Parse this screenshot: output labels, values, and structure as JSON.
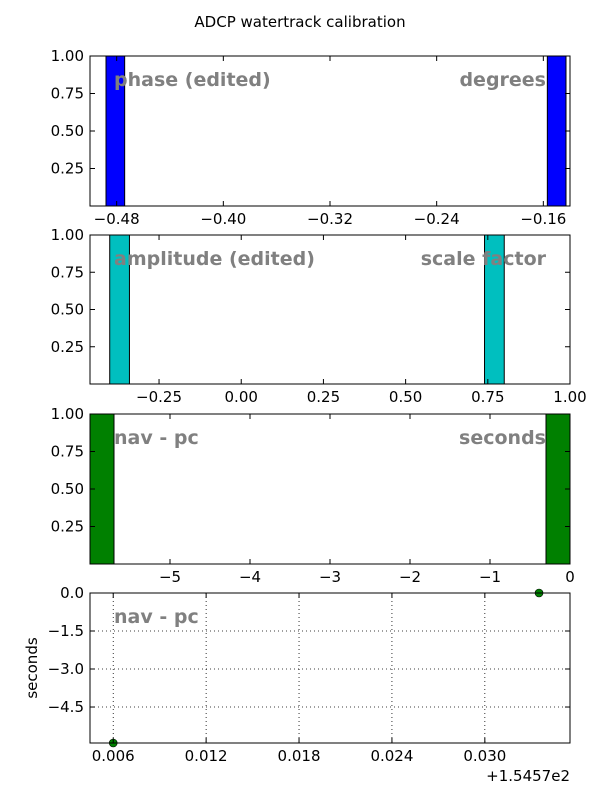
{
  "chart_data": [
    {
      "title": "ADCP watertrack calibration",
      "type": "bar",
      "panel": 1,
      "bars": [
        {
          "x0": -0.488,
          "x1": -0.474,
          "value": 1.0
        },
        {
          "x0": -0.157,
          "x1": -0.143,
          "value": 1.0
        }
      ],
      "bar_color": "#0000ff",
      "xlim": [
        -0.5,
        -0.14
      ],
      "ylim": [
        0,
        1.0
      ],
      "xticks": [
        -0.48,
        -0.4,
        -0.32,
        -0.24,
        -0.16
      ],
      "xtick_labels": [
        "−0.48",
        "−0.40",
        "−0.32",
        "−0.24",
        "−0.16"
      ],
      "yticks": [
        0.25,
        0.5,
        0.75,
        1.0
      ],
      "ytick_labels": [
        "0.25",
        "0.50",
        "0.75",
        "1.00"
      ],
      "annotation_left": "phase (edited)",
      "annotation_right": "degrees",
      "grid": false
    },
    {
      "type": "bar",
      "panel": 2,
      "bars": [
        {
          "x0": -0.4,
          "x1": -0.34,
          "value": 1.0
        },
        {
          "x0": 0.74,
          "x1": 0.8,
          "value": 1.0
        }
      ],
      "bar_color": "#00bfbf",
      "xlim": [
        -0.46,
        1.0
      ],
      "ylim": [
        0,
        1.0
      ],
      "xticks": [
        -0.25,
        0.0,
        0.25,
        0.5,
        0.75,
        1.0
      ],
      "xtick_labels": [
        "−0.25",
        "0.00",
        "0.25",
        "0.50",
        "0.75",
        "1.00"
      ],
      "yticks": [
        0.25,
        0.5,
        0.75,
        1.0
      ],
      "ytick_labels": [
        "0.25",
        "0.50",
        "0.75",
        "1.00"
      ],
      "annotation_left": "amplitude (edited)",
      "annotation_right": "scale factor",
      "grid": false
    },
    {
      "type": "bar",
      "panel": 3,
      "bars": [
        {
          "x0": -6.0,
          "x1": -5.7,
          "value": 1.0
        },
        {
          "x0": -0.3,
          "x1": 0.0,
          "value": 1.0
        }
      ],
      "bar_color": "#008000",
      "xlim": [
        -6.0,
        0.0
      ],
      "ylim": [
        0,
        1.0
      ],
      "xticks": [
        -5,
        -4,
        -3,
        -2,
        -1,
        0
      ],
      "xtick_labels": [
        "−5",
        "−4",
        "−3",
        "−2",
        "−1",
        "0"
      ],
      "yticks": [
        0.25,
        0.5,
        0.75,
        1.0
      ],
      "ytick_labels": [
        "0.25",
        "0.50",
        "0.75",
        "1.00"
      ],
      "annotation_left": "nav - pc",
      "annotation_right": "seconds",
      "grid": false
    },
    {
      "type": "scatter",
      "panel": 4,
      "points": [
        {
          "x": 0.006,
          "y": -5.92
        },
        {
          "x": 0.0335,
          "y": 0.0
        }
      ],
      "point_color": "#008000",
      "xlim": [
        0.0045,
        0.0355
      ],
      "ylim": [
        -5.92,
        0.0
      ],
      "xticks": [
        0.006,
        0.012,
        0.018,
        0.024,
        0.03
      ],
      "xtick_labels": [
        "0.006",
        "0.012",
        "0.018",
        "0.024",
        "0.030"
      ],
      "yticks": [
        0.0,
        -1.5,
        -3.0,
        -4.5
      ],
      "ytick_labels": [
        "0.0",
        "−1.5",
        "−3.0",
        "−4.5"
      ],
      "x_offset_label": "+1.5457e2",
      "ylabel": "seconds",
      "annotation_left": "nav - pc",
      "grid": true
    }
  ]
}
